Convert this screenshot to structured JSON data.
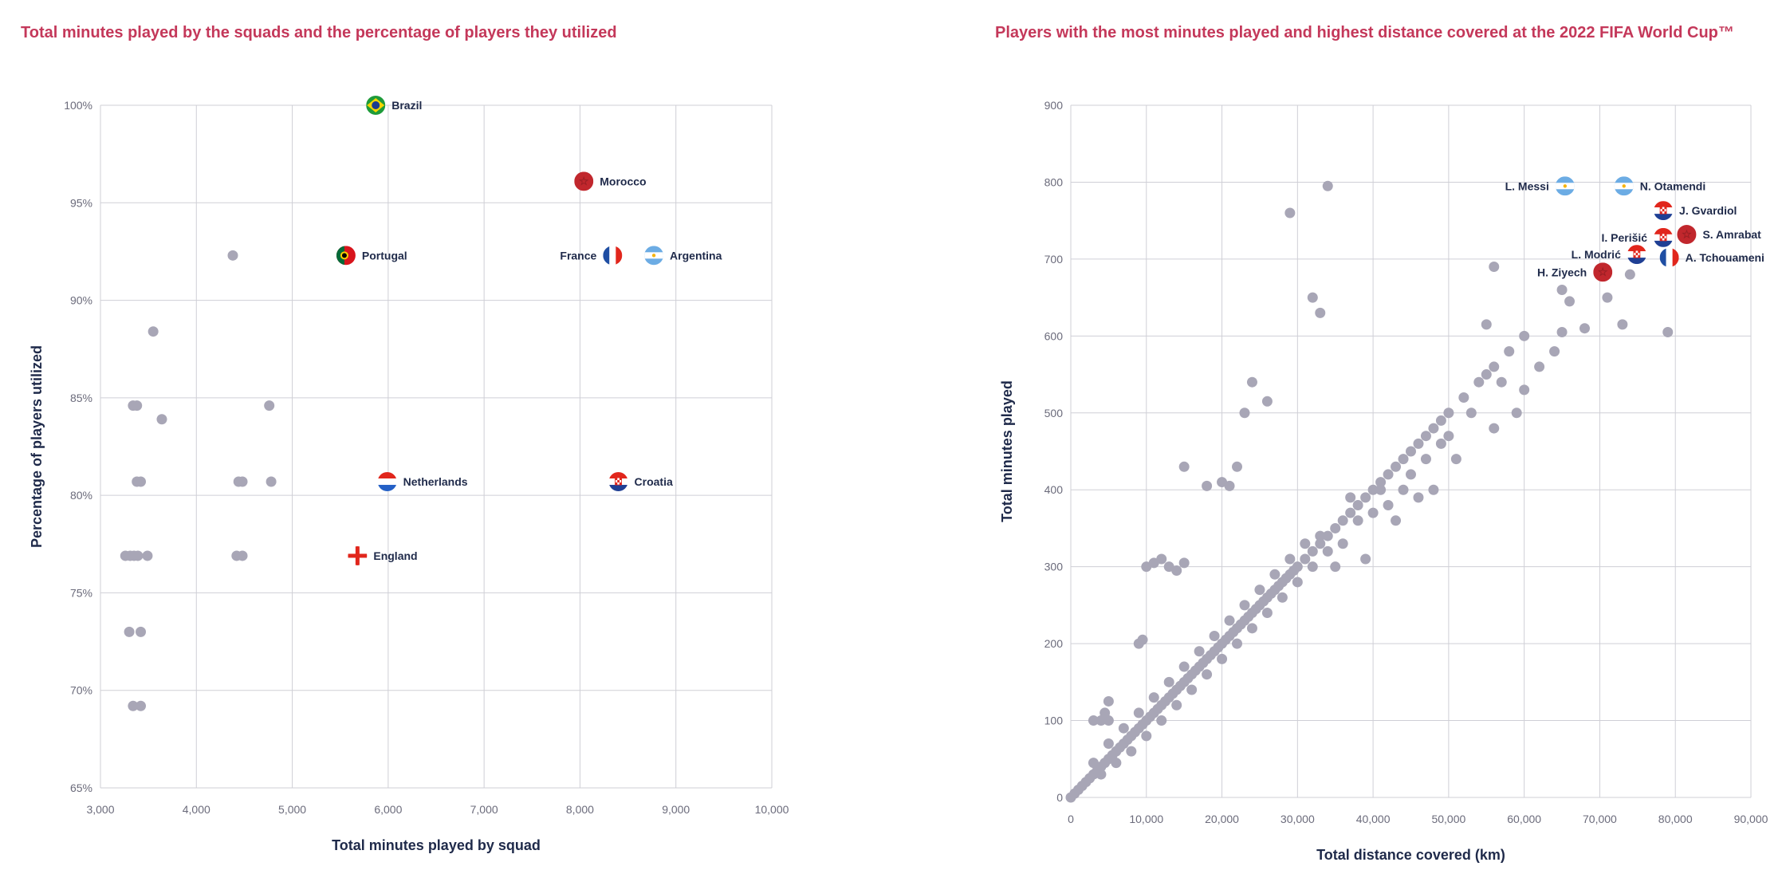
{
  "chart_data": [
    {
      "type": "scatter",
      "title": "Total minutes played by the squads and the percentage of players they utilized",
      "xlabel": "Total minutes played by squad",
      "ylabel": "Percentage of players utilized",
      "xlim": [
        3000,
        10000
      ],
      "ylim": [
        65,
        100
      ],
      "xticks": [
        3000,
        4000,
        5000,
        6000,
        7000,
        8000,
        9000,
        10000
      ],
      "xtick_labels": [
        "3,000",
        "4,000",
        "5,000",
        "6,000",
        "7,000",
        "8,000",
        "9,000",
        "10,000"
      ],
      "yticks": [
        65,
        70,
        75,
        80,
        85,
        90,
        95,
        100
      ],
      "ytick_labels": [
        "65%",
        "70%",
        "75%",
        "80%",
        "85%",
        "90%",
        "95%",
        "100%"
      ],
      "grid": true,
      "point_color": "#a8a6b6",
      "points": [
        {
          "x": 4380,
          "y": 92.3
        },
        {
          "x": 3550,
          "y": 88.4
        },
        {
          "x": 3640,
          "y": 83.9
        },
        {
          "x": 3340,
          "y": 84.6
        },
        {
          "x": 3380,
          "y": 84.6
        },
        {
          "x": 4760,
          "y": 84.6
        },
        {
          "x": 3380,
          "y": 80.7
        },
        {
          "x": 3420,
          "y": 80.7
        },
        {
          "x": 4440,
          "y": 80.7
        },
        {
          "x": 4480,
          "y": 80.7
        },
        {
          "x": 4780,
          "y": 80.7
        },
        {
          "x": 3260,
          "y": 76.9
        },
        {
          "x": 3310,
          "y": 76.9
        },
        {
          "x": 3350,
          "y": 76.9
        },
        {
          "x": 3390,
          "y": 76.9
        },
        {
          "x": 3490,
          "y": 76.9
        },
        {
          "x": 4420,
          "y": 76.9
        },
        {
          "x": 4480,
          "y": 76.9
        },
        {
          "x": 3300,
          "y": 73.0
        },
        {
          "x": 3420,
          "y": 73.0
        },
        {
          "x": 3340,
          "y": 69.2
        },
        {
          "x": 3420,
          "y": 69.2
        }
      ],
      "highlighted": [
        {
          "name": "Brazil",
          "x": 5870,
          "y": 100,
          "flag": "brazil",
          "label_side": "right"
        },
        {
          "name": "Morocco",
          "x": 8040,
          "y": 96.1,
          "flag": "morocco",
          "label_side": "right"
        },
        {
          "name": "Portugal",
          "x": 5560,
          "y": 92.3,
          "flag": "portugal",
          "label_side": "right"
        },
        {
          "name": "France",
          "x": 8340,
          "y": 92.3,
          "flag": "france",
          "label_side": "left"
        },
        {
          "name": "Argentina",
          "x": 8770,
          "y": 92.3,
          "flag": "argentina",
          "label_side": "right"
        },
        {
          "name": "Netherlands",
          "x": 5990,
          "y": 80.7,
          "flag": "netherlands",
          "label_side": "right"
        },
        {
          "name": "Croatia",
          "x": 8400,
          "y": 80.7,
          "flag": "croatia",
          "label_side": "right"
        },
        {
          "name": "England",
          "x": 5680,
          "y": 76.9,
          "flag": "england",
          "label_side": "right"
        }
      ]
    },
    {
      "type": "scatter",
      "title": "Players with the most minutes played and highest distance covered at the 2022 FIFA World Cup™",
      "xlabel": "Total distance covered (km)",
      "ylabel": "Total minutes played",
      "xlim": [
        0,
        90000
      ],
      "ylim": [
        0,
        900
      ],
      "xticks": [
        0,
        10000,
        20000,
        30000,
        40000,
        50000,
        60000,
        70000,
        80000,
        90000
      ],
      "xtick_labels": [
        "0",
        "10,000",
        "20,000",
        "30,000",
        "40,000",
        "50,000",
        "60,000",
        "70,000",
        "80,000",
        "90,000"
      ],
      "yticks": [
        0,
        100,
        200,
        300,
        400,
        500,
        600,
        700,
        800,
        900
      ],
      "ytick_labels": [
        "0",
        "100",
        "200",
        "300",
        "400",
        "500",
        "600",
        "700",
        "800",
        "900"
      ],
      "grid": true,
      "point_color": "#a8a6b6",
      "points": [
        {
          "x": 0,
          "y": 0
        },
        {
          "x": 500,
          "y": 5
        },
        {
          "x": 1000,
          "y": 10
        },
        {
          "x": 1500,
          "y": 15
        },
        {
          "x": 2000,
          "y": 20
        },
        {
          "x": 2500,
          "y": 25
        },
        {
          "x": 3000,
          "y": 30
        },
        {
          "x": 3500,
          "y": 35
        },
        {
          "x": 4000,
          "y": 40
        },
        {
          "x": 4500,
          "y": 45
        },
        {
          "x": 5000,
          "y": 50
        },
        {
          "x": 5500,
          "y": 55
        },
        {
          "x": 6000,
          "y": 60
        },
        {
          "x": 6500,
          "y": 65
        },
        {
          "x": 7000,
          "y": 70
        },
        {
          "x": 7500,
          "y": 75
        },
        {
          "x": 8000,
          "y": 80
        },
        {
          "x": 8500,
          "y": 85
        },
        {
          "x": 9000,
          "y": 90
        },
        {
          "x": 9500,
          "y": 95
        },
        {
          "x": 10000,
          "y": 100
        },
        {
          "x": 10500,
          "y": 105
        },
        {
          "x": 11000,
          "y": 110
        },
        {
          "x": 11500,
          "y": 115
        },
        {
          "x": 12000,
          "y": 120
        },
        {
          "x": 12500,
          "y": 125
        },
        {
          "x": 13000,
          "y": 130
        },
        {
          "x": 13500,
          "y": 135
        },
        {
          "x": 14000,
          "y": 140
        },
        {
          "x": 14500,
          "y": 145
        },
        {
          "x": 15000,
          "y": 150
        },
        {
          "x": 15500,
          "y": 155
        },
        {
          "x": 16000,
          "y": 160
        },
        {
          "x": 16500,
          "y": 165
        },
        {
          "x": 17000,
          "y": 170
        },
        {
          "x": 17500,
          "y": 175
        },
        {
          "x": 18000,
          "y": 180
        },
        {
          "x": 18500,
          "y": 185
        },
        {
          "x": 19000,
          "y": 190
        },
        {
          "x": 19500,
          "y": 195
        },
        {
          "x": 20000,
          "y": 200
        },
        {
          "x": 20500,
          "y": 205
        },
        {
          "x": 21000,
          "y": 210
        },
        {
          "x": 21500,
          "y": 215
        },
        {
          "x": 22000,
          "y": 220
        },
        {
          "x": 22500,
          "y": 225
        },
        {
          "x": 23000,
          "y": 230
        },
        {
          "x": 23500,
          "y": 235
        },
        {
          "x": 24000,
          "y": 240
        },
        {
          "x": 24500,
          "y": 245
        },
        {
          "x": 25000,
          "y": 250
        },
        {
          "x": 25500,
          "y": 255
        },
        {
          "x": 26000,
          "y": 260
        },
        {
          "x": 26500,
          "y": 265
        },
        {
          "x": 27000,
          "y": 270
        },
        {
          "x": 27500,
          "y": 275
        },
        {
          "x": 28000,
          "y": 280
        },
        {
          "x": 28500,
          "y": 285
        },
        {
          "x": 29000,
          "y": 290
        },
        {
          "x": 29500,
          "y": 295
        },
        {
          "x": 30000,
          "y": 300
        },
        {
          "x": 31000,
          "y": 310
        },
        {
          "x": 32000,
          "y": 320
        },
        {
          "x": 33000,
          "y": 330
        },
        {
          "x": 34000,
          "y": 340
        },
        {
          "x": 35000,
          "y": 350
        },
        {
          "x": 36000,
          "y": 360
        },
        {
          "x": 37000,
          "y": 370
        },
        {
          "x": 38000,
          "y": 380
        },
        {
          "x": 39000,
          "y": 390
        },
        {
          "x": 40000,
          "y": 400
        },
        {
          "x": 41000,
          "y": 410
        },
        {
          "x": 42000,
          "y": 420
        },
        {
          "x": 43000,
          "y": 430
        },
        {
          "x": 44000,
          "y": 440
        },
        {
          "x": 45000,
          "y": 450
        },
        {
          "x": 46000,
          "y": 460
        },
        {
          "x": 47000,
          "y": 470
        },
        {
          "x": 48000,
          "y": 480
        },
        {
          "x": 49000,
          "y": 490
        },
        {
          "x": 50000,
          "y": 500
        },
        {
          "x": 52000,
          "y": 520
        },
        {
          "x": 54000,
          "y": 540
        },
        {
          "x": 56000,
          "y": 560
        },
        {
          "x": 58000,
          "y": 580
        },
        {
          "x": 60000,
          "y": 600
        },
        {
          "x": 3000,
          "y": 45
        },
        {
          "x": 4000,
          "y": 30
        },
        {
          "x": 5000,
          "y": 70
        },
        {
          "x": 6000,
          "y": 45
        },
        {
          "x": 7000,
          "y": 90
        },
        {
          "x": 8000,
          "y": 60
        },
        {
          "x": 9000,
          "y": 110
        },
        {
          "x": 10000,
          "y": 80
        },
        {
          "x": 11000,
          "y": 130
        },
        {
          "x": 12000,
          "y": 100
        },
        {
          "x": 13000,
          "y": 150
        },
        {
          "x": 14000,
          "y": 120
        },
        {
          "x": 15000,
          "y": 170
        },
        {
          "x": 16000,
          "y": 140
        },
        {
          "x": 17000,
          "y": 190
        },
        {
          "x": 18000,
          "y": 160
        },
        {
          "x": 19000,
          "y": 210
        },
        {
          "x": 20000,
          "y": 180
        },
        {
          "x": 21000,
          "y": 230
        },
        {
          "x": 22000,
          "y": 200
        },
        {
          "x": 23000,
          "y": 250
        },
        {
          "x": 24000,
          "y": 220
        },
        {
          "x": 25000,
          "y": 270
        },
        {
          "x": 26000,
          "y": 240
        },
        {
          "x": 27000,
          "y": 290
        },
        {
          "x": 28000,
          "y": 260
        },
        {
          "x": 29000,
          "y": 310
        },
        {
          "x": 30000,
          "y": 280
        },
        {
          "x": 31000,
          "y": 330
        },
        {
          "x": 32000,
          "y": 300
        },
        {
          "x": 33000,
          "y": 340
        },
        {
          "x": 34000,
          "y": 320
        },
        {
          "x": 35000,
          "y": 300
        },
        {
          "x": 36000,
          "y": 330
        },
        {
          "x": 37000,
          "y": 390
        },
        {
          "x": 38000,
          "y": 360
        },
        {
          "x": 39000,
          "y": 310
        },
        {
          "x": 40000,
          "y": 370
        },
        {
          "x": 41000,
          "y": 400
        },
        {
          "x": 42000,
          "y": 380
        },
        {
          "x": 43000,
          "y": 360
        },
        {
          "x": 44000,
          "y": 400
        },
        {
          "x": 45000,
          "y": 420
        },
        {
          "x": 46000,
          "y": 390
        },
        {
          "x": 47000,
          "y": 440
        },
        {
          "x": 48000,
          "y": 400
        },
        {
          "x": 49000,
          "y": 460
        },
        {
          "x": 50000,
          "y": 470
        },
        {
          "x": 51000,
          "y": 440
        },
        {
          "x": 53000,
          "y": 500
        },
        {
          "x": 55000,
          "y": 550
        },
        {
          "x": 56000,
          "y": 480
        },
        {
          "x": 57000,
          "y": 540
        },
        {
          "x": 59000,
          "y": 500
        },
        {
          "x": 60000,
          "y": 530
        },
        {
          "x": 62000,
          "y": 560
        },
        {
          "x": 64000,
          "y": 580
        },
        {
          "x": 10000,
          "y": 300
        },
        {
          "x": 11000,
          "y": 305
        },
        {
          "x": 12000,
          "y": 310
        },
        {
          "x": 13000,
          "y": 300
        },
        {
          "x": 14000,
          "y": 295
        },
        {
          "x": 15000,
          "y": 305
        },
        {
          "x": 15000,
          "y": 430
        },
        {
          "x": 18000,
          "y": 405
        },
        {
          "x": 20000,
          "y": 410
        },
        {
          "x": 21000,
          "y": 405
        },
        {
          "x": 22000,
          "y": 430
        },
        {
          "x": 23000,
          "y": 500
        },
        {
          "x": 24000,
          "y": 540
        },
        {
          "x": 26000,
          "y": 515
        },
        {
          "x": 9000,
          "y": 200
        },
        {
          "x": 9500,
          "y": 205
        },
        {
          "x": 29000,
          "y": 760
        },
        {
          "x": 32000,
          "y": 650
        },
        {
          "x": 33000,
          "y": 630
        },
        {
          "x": 34000,
          "y": 795
        },
        {
          "x": 56000,
          "y": 690
        },
        {
          "x": 55000,
          "y": 615
        },
        {
          "x": 65000,
          "y": 660
        },
        {
          "x": 66000,
          "y": 645
        },
        {
          "x": 65000,
          "y": 605
        },
        {
          "x": 68000,
          "y": 610
        },
        {
          "x": 71000,
          "y": 650
        },
        {
          "x": 73000,
          "y": 615
        },
        {
          "x": 74000,
          "y": 680
        },
        {
          "x": 79000,
          "y": 605
        },
        {
          "x": 3000,
          "y": 100
        },
        {
          "x": 5000,
          "y": 125
        },
        {
          "x": 4000,
          "y": 100
        },
        {
          "x": 4500,
          "y": 110
        },
        {
          "x": 5000,
          "y": 100
        }
      ],
      "highlighted": [
        {
          "name": "L. Messi",
          "x": 65400,
          "y": 795,
          "flag": "argentina",
          "label_side": "left"
        },
        {
          "name": "N. Otamendi",
          "x": 73200,
          "y": 795,
          "flag": "argentina",
          "label_side": "right"
        },
        {
          "name": "J. Gvardiol",
          "x": 78400,
          "y": 763,
          "flag": "croatia",
          "label_side": "right"
        },
        {
          "name": "S. Amrabat",
          "x": 81500,
          "y": 732,
          "flag": "morocco",
          "label_side": "right"
        },
        {
          "name": "I. Perišić",
          "x": 78400,
          "y": 728,
          "flag": "croatia",
          "label_side": "left"
        },
        {
          "name": "L. Modrić",
          "x": 74900,
          "y": 706,
          "flag": "croatia",
          "label_side": "left"
        },
        {
          "name": "A. Tchouameni",
          "x": 79200,
          "y": 702,
          "flag": "france",
          "label_side": "right"
        },
        {
          "name": "H. Ziyech",
          "x": 70400,
          "y": 683,
          "flag": "morocco",
          "label_side": "left"
        }
      ]
    }
  ]
}
